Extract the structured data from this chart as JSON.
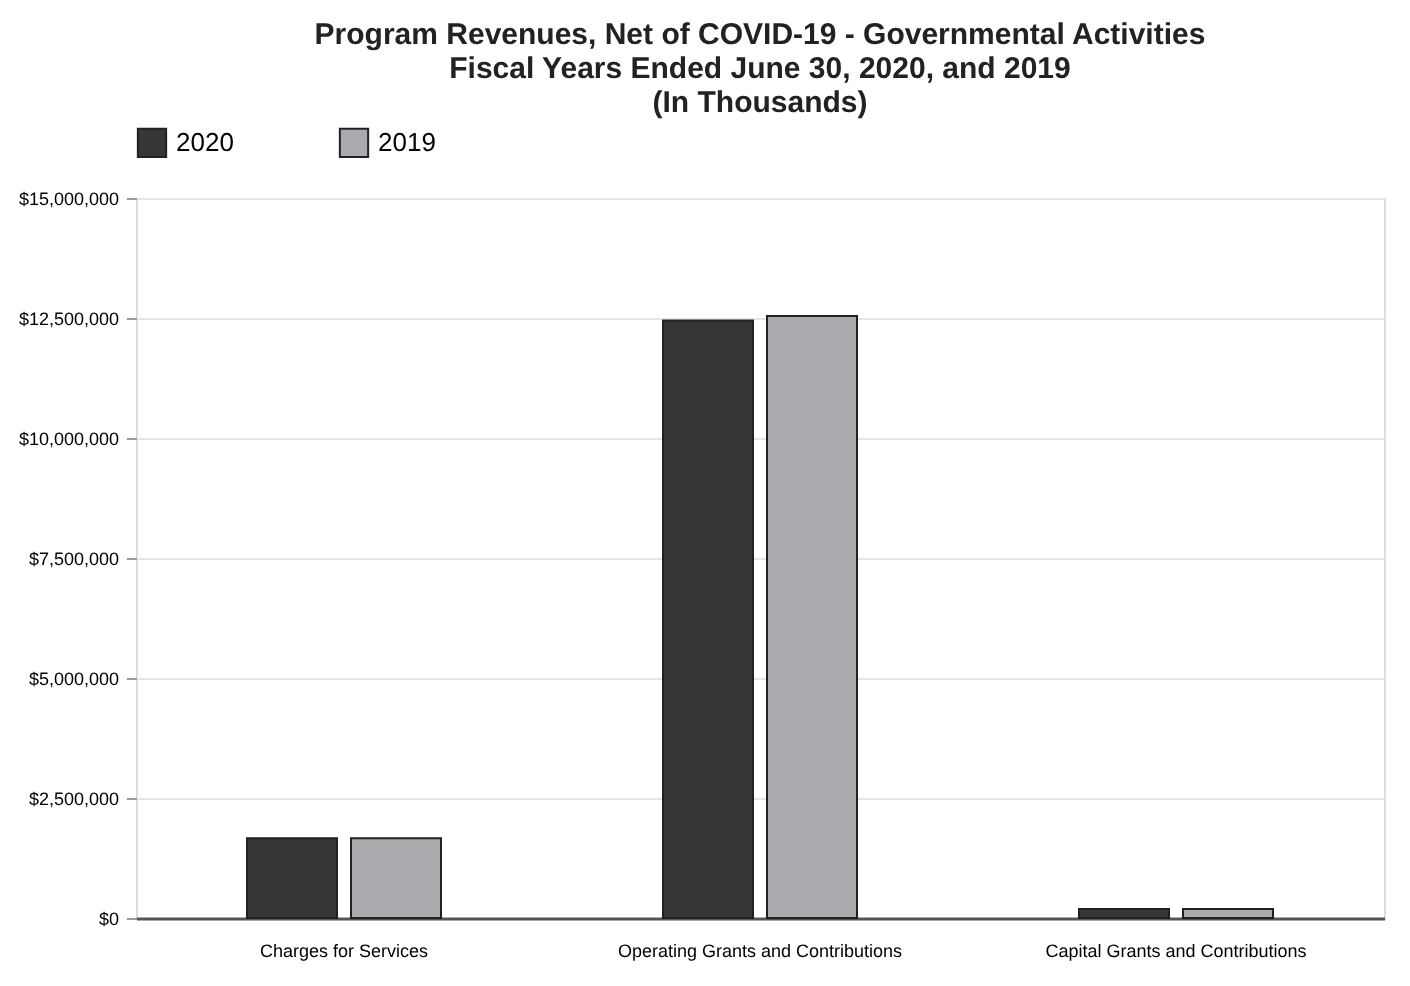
{
  "chart_data": {
    "type": "bar",
    "title": [
      "Program Revenues, Net of COVID-19 - Governmental Activities",
      "Fiscal Years Ended June 30, 2020, and 2019",
      "(In Thousands)"
    ],
    "categories": [
      "Charges for Services",
      "Operating Grants and Contributions",
      "Capital Grants and Contributions"
    ],
    "series": [
      {
        "name": "2020",
        "color": "#363636",
        "values": [
          1660000,
          12450000,
          190000
        ]
      },
      {
        "name": "2019",
        "color": "#a9aaad",
        "values": [
          1660000,
          12540000,
          190000
        ]
      }
    ],
    "ylim": [
      0,
      15000000
    ],
    "yticks": [
      {
        "value": 0,
        "label": "$0"
      },
      {
        "value": 2500000,
        "label": "$2,500,000"
      },
      {
        "value": 5000000,
        "label": "$5,000,000"
      },
      {
        "value": 7500000,
        "label": "$7,500,000"
      },
      {
        "value": 10000000,
        "label": "$10,000,000"
      },
      {
        "value": 12500000,
        "label": "$12,500,000"
      },
      {
        "value": 15000000,
        "label": "$15,000,000"
      }
    ],
    "grid": "y",
    "legend": "top"
  }
}
